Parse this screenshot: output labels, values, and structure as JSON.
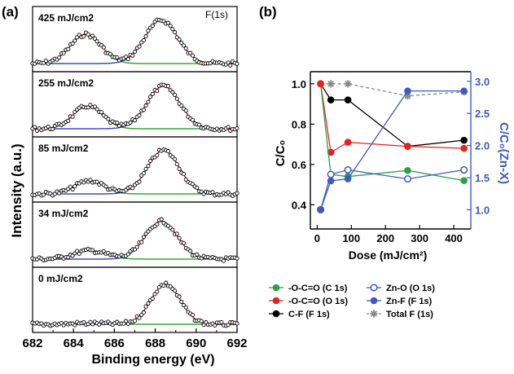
{
  "panel_a": {
    "label": "(a)",
    "ylabel": "Intensity (a.u.)",
    "xlabel": "Binding energy (eV)",
    "annotation": "F(1s)",
    "xlim": [
      682,
      692
    ],
    "xticks": [
      682,
      684,
      686,
      688,
      690,
      692
    ]
  },
  "panel_b": {
    "label": "(b)",
    "xlabel": "Dose (mJ/cm²)",
    "ylabel_left": "C/C₀",
    "ylabel_right": "C/C₀(Zn-X)"
  },
  "legend": [
    {
      "key": "ocoo_c1s",
      "label": "-O-C=O (C 1s)"
    },
    {
      "key": "zno_o1s",
      "label": "Zn-O (O 1s)"
    },
    {
      "key": "ocoo_o1s",
      "label": "-O-C=O (O 1s)"
    },
    {
      "key": "znf_f1s",
      "label": "Zn-F (F 1s)"
    },
    {
      "key": "cf_f1s",
      "label": "C-F (F 1s)"
    },
    {
      "key": "totalf",
      "label": "Total F (1s)"
    }
  ],
  "colors": {
    "data_points": "#000000",
    "envelope": "#e8211d",
    "cf_component": "#3aa63a",
    "zn_component": "#3c4fc0",
    "left_axis": "#000000",
    "right_axis": "#3c5bbd",
    "ocoo_c1s": "#2aa146",
    "ocoo_o1s": "#e8211d",
    "cf_f1s": "#000000",
    "zno_o1s": "#3c5bbd",
    "znf_f1s": "#3c5bbd",
    "totalf": "#888888"
  },
  "chart_data": [
    {
      "type": "line",
      "title": "",
      "xlabel": "Binding energy (eV)",
      "ylabel": "Intensity (a.u.)",
      "xlim": [
        682,
        692
      ],
      "x_reversed": false,
      "grid": false,
      "panels": [
        {
          "label": "425 mJ/cm2",
          "peaks": [
            {
              "name": "C-F",
              "center": 684.6,
              "height": 0.62,
              "width": 0.75
            },
            {
              "name": "Zn-F",
              "center": 688.3,
              "height": 0.92,
              "width": 0.8
            }
          ],
          "low_baseline_tail": 0.0
        },
        {
          "label": "255 mJ/cm2",
          "peaks": [
            {
              "name": "C-F",
              "center": 684.7,
              "height": 0.48,
              "width": 0.72
            },
            {
              "name": "Zn-F",
              "center": 688.4,
              "height": 0.9,
              "width": 0.8
            }
          ],
          "low_baseline_tail": 0.0
        },
        {
          "label": "85 mJ/cm2",
          "peaks": [
            {
              "name": "C-F",
              "center": 684.8,
              "height": 0.28,
              "width": 0.7
            },
            {
              "name": "Zn-F",
              "center": 688.4,
              "height": 0.92,
              "width": 0.78
            }
          ],
          "low_baseline_tail": 0.0
        },
        {
          "label": "34 mJ/cm2",
          "peaks": [
            {
              "name": "C-F",
              "center": 684.8,
              "height": 0.18,
              "width": 0.8
            },
            {
              "name": "Zn-F",
              "center": 688.3,
              "height": 0.8,
              "width": 0.78
            }
          ],
          "low_baseline_tail": 0.0
        },
        {
          "label": "0 mJ/cm2",
          "peaks": [
            {
              "name": "C-F",
              "center": 684.8,
              "height": 0.02,
              "width": 0.8
            },
            {
              "name": "Zn-F",
              "center": 688.5,
              "height": 0.85,
              "width": 0.72
            }
          ],
          "low_baseline_tail": 0.0
        }
      ]
    },
    {
      "type": "line",
      "title": "",
      "xlabel": "Dose (mJ/cm²)",
      "ylabel": "C/C₀",
      "ylabel_right": "C/C₀(Zn-X)",
      "xlim": [
        -20,
        450
      ],
      "ylim": [
        0.28,
        1.06
      ],
      "ylim_right": [
        0.7,
        3.15
      ],
      "xticks": [
        0,
        100,
        200,
        300,
        400
      ],
      "yticks": [
        0.4,
        0.6,
        0.8,
        1.0
      ],
      "yticks_right": [
        1.0,
        1.5,
        2.0,
        2.5,
        3.0
      ],
      "legend_position": "bottom",
      "grid": false,
      "series": [
        {
          "key": "ocoo_c1s",
          "name": "-O-C=O (C 1s)",
          "axis": "left",
          "marker": "filled-circle",
          "line": "solid",
          "x": [
            10,
            40,
            90,
            265,
            430
          ],
          "y": [
            1.0,
            0.55,
            0.54,
            0.57,
            0.52
          ]
        },
        {
          "key": "ocoo_o1s",
          "name": "-O-C=O (O 1s)",
          "axis": "left",
          "marker": "filled-circle",
          "line": "solid",
          "x": [
            10,
            40,
            90,
            265,
            430
          ],
          "y": [
            1.0,
            0.66,
            0.71,
            0.69,
            0.68
          ]
        },
        {
          "key": "cf_f1s",
          "name": "C-F (F 1s)",
          "axis": "left",
          "marker": "filled-circle",
          "line": "solid",
          "x": [
            10,
            40,
            90,
            265,
            430
          ],
          "y": [
            1.0,
            0.92,
            0.92,
            0.69,
            0.72
          ]
        },
        {
          "key": "zno_o1s",
          "name": "Zn-O (O 1s)",
          "axis": "right",
          "marker": "open-circle",
          "line": "solid",
          "x": [
            10,
            40,
            90,
            265,
            430
          ],
          "y": [
            1.0,
            1.55,
            1.62,
            1.48,
            1.62
          ]
        },
        {
          "key": "znf_f1s",
          "name": "Zn-F (F 1s)",
          "axis": "right",
          "marker": "filled-circle",
          "line": "solid",
          "x": [
            10,
            40,
            90,
            265,
            430
          ],
          "y": [
            1.0,
            1.45,
            1.48,
            2.85,
            2.85
          ]
        },
        {
          "key": "totalf",
          "name": "Total F (1s)",
          "axis": "left",
          "marker": "asterisk",
          "line": "dashed",
          "x": [
            10,
            40,
            90,
            265,
            430
          ],
          "y": [
            1.0,
            1.0,
            1.0,
            0.94,
            0.96
          ]
        }
      ]
    }
  ]
}
